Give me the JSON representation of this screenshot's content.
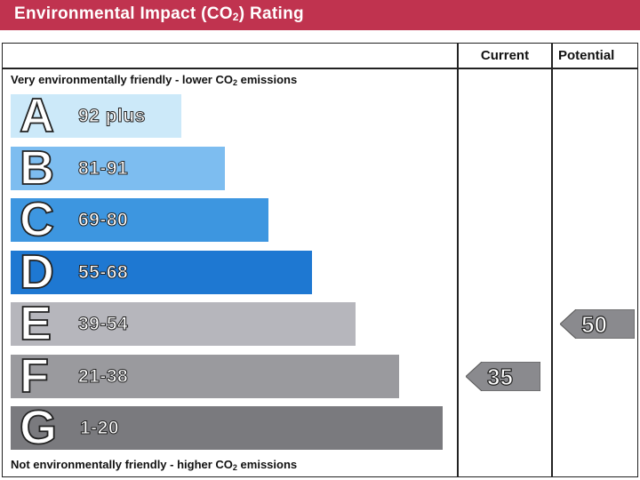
{
  "header": {
    "title_main": "Environmental Impact (CO",
    "title_sub": "2",
    "title_end": ") Rating"
  },
  "columns": {
    "current": "Current",
    "potential": "Potential"
  },
  "notes": {
    "top_main": "Very environmentally friendly - lower CO",
    "top_sub": "2",
    "top_end": " emissions",
    "bottom_main": "Not environmentally friendly - higher CO",
    "bottom_sub": "2",
    "bottom_end": " emissions"
  },
  "chart_data": {
    "type": "bar",
    "bands": [
      {
        "letter": "A",
        "range": "92 plus",
        "color": "#cce9f9"
      },
      {
        "letter": "B",
        "range": "81-91",
        "color": "#7dbdf0"
      },
      {
        "letter": "C",
        "range": "69-80",
        "color": "#3d96e0"
      },
      {
        "letter": "D",
        "range": "55-68",
        "color": "#1e78d2"
      },
      {
        "letter": "E",
        "range": "39-54",
        "color": "#b6b6bc"
      },
      {
        "letter": "F",
        "range": "21-38",
        "color": "#9a9a9e"
      },
      {
        "letter": "G",
        "range": "1-20",
        "color": "#7a7a7e"
      }
    ],
    "current": {
      "value": "35",
      "band": "F"
    },
    "potential": {
      "value": "50",
      "band": "E"
    },
    "marker_color": "#8a8a8e"
  }
}
